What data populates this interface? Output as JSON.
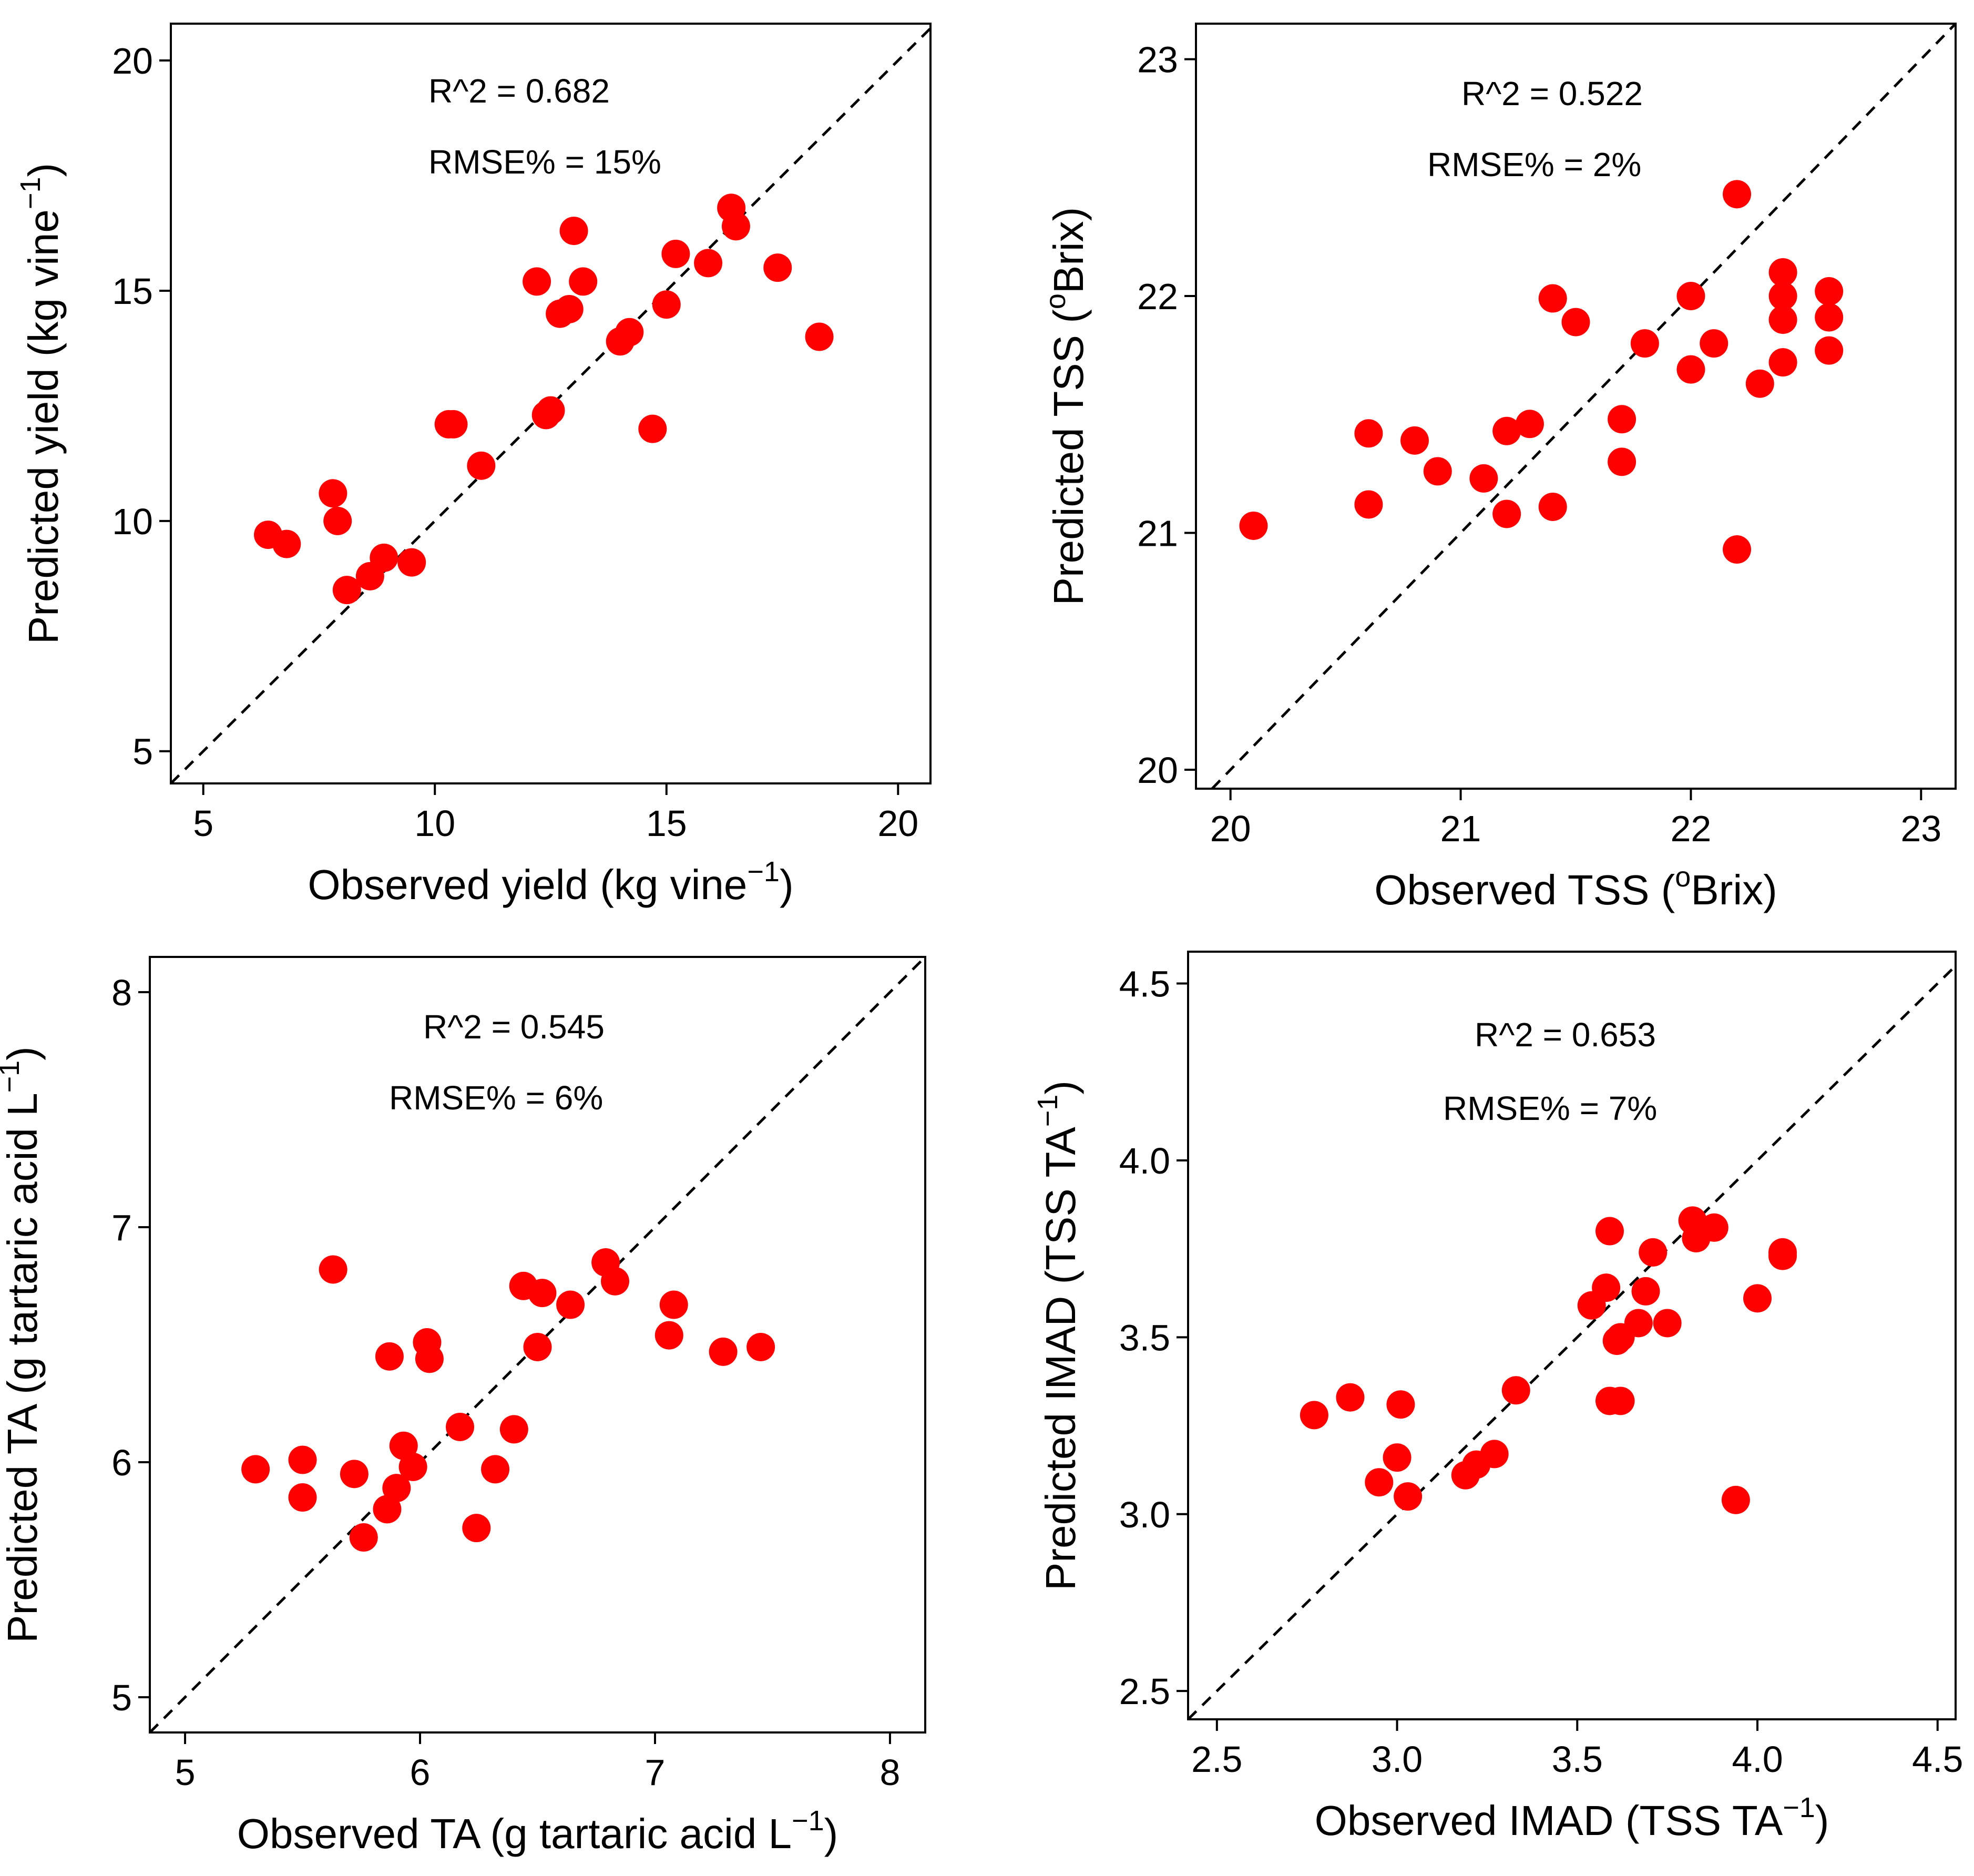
{
  "chart_data": [
    {
      "type": "scatter",
      "xlabel": "Observed yield (kg vine",
      "ylabel": "Predicted yield (kg vine",
      "label_superscript": "−1",
      "label_close": ")",
      "xlim": [
        4.3,
        20.7
      ],
      "ylim": [
        4.3,
        20.8
      ],
      "xticks": [
        "5",
        "10",
        "15",
        "20"
      ],
      "yticks": [
        "5",
        "10",
        "15",
        "20"
      ],
      "tick_values": [
        5,
        10,
        15,
        20
      ],
      "annotations": [
        "R^2 = 0.682",
        "RMSE% = 15%"
      ],
      "color": "#ff0000",
      "x": [
        6.4,
        6.8,
        7.8,
        7.9,
        8.1,
        8.6,
        8.9,
        9.5,
        10.3,
        10.4,
        11.0,
        12.2,
        12.4,
        12.5,
        12.7,
        12.9,
        13.0,
        13.2,
        14.0,
        14.2,
        14.7,
        15.0,
        15.2,
        15.9,
        16.4,
        16.5,
        17.4,
        18.3
      ],
      "y": [
        9.7,
        9.5,
        10.6,
        10.0,
        8.5,
        8.8,
        9.2,
        9.1,
        12.1,
        12.1,
        11.2,
        15.2,
        12.3,
        12.4,
        14.5,
        14.6,
        16.3,
        15.2,
        13.9,
        14.1,
        12.0,
        14.7,
        15.8,
        15.6,
        16.8,
        16.4,
        15.5,
        14.0
      ]
    },
    {
      "type": "scatter",
      "xlabel": "Observed TSS (",
      "ylabel": "Predicted TSS (",
      "label_superscript": "o",
      "label_close": "Brix)",
      "xlim": [
        19.85,
        23.15
      ],
      "ylim": [
        19.92,
        23.15
      ],
      "xticks": [
        "20",
        "21",
        "22",
        "23"
      ],
      "yticks": [
        "20",
        "21",
        "22",
        "23"
      ],
      "tick_values": [
        20,
        21,
        22,
        23
      ],
      "annotations": [
        "R^2 = 0.522",
        "RMSE% = 2%"
      ],
      "color": "#ff0000",
      "x": [
        20.1,
        20.6,
        20.6,
        20.8,
        20.9,
        21.1,
        21.2,
        21.2,
        21.3,
        21.4,
        21.4,
        21.5,
        21.7,
        21.7,
        21.8,
        22.0,
        22.0,
        22.1,
        22.2,
        22.2,
        22.3,
        22.4,
        22.4,
        22.4,
        22.4,
        22.6,
        22.6,
        22.6
      ],
      "y": [
        21.03,
        21.42,
        21.12,
        21.39,
        21.26,
        21.23,
        21.43,
        21.08,
        21.46,
        21.99,
        21.11,
        21.89,
        21.48,
        21.3,
        21.8,
        22.0,
        21.69,
        21.8,
        22.43,
        20.93,
        21.63,
        22.1,
        22.0,
        21.9,
        21.72,
        22.02,
        21.91,
        21.77
      ]
    },
    {
      "type": "scatter",
      "xlabel": "Observed TA (g tartaric acid  L",
      "ylabel": "Predicted TA (g tartaric acid  L",
      "label_superscript": "−1",
      "label_close": ")",
      "xlim": [
        4.85,
        8.15
      ],
      "ylim": [
        4.85,
        8.15
      ],
      "xticks": [
        "5",
        "6",
        "7",
        "8"
      ],
      "yticks": [
        "5",
        "6",
        "7",
        "8"
      ],
      "tick_values": [
        5,
        6,
        7,
        8
      ],
      "annotations": [
        "R^2 = 0.545",
        "RMSE% = 6%"
      ],
      "color": "#ff0000",
      "x": [
        5.3,
        5.5,
        5.5,
        5.63,
        5.72,
        5.76,
        5.86,
        5.87,
        5.9,
        5.93,
        5.97,
        6.03,
        6.04,
        6.17,
        6.24,
        6.32,
        6.4,
        6.44,
        6.5,
        6.52,
        6.64,
        6.79,
        6.83,
        7.06,
        7.08,
        7.29,
        7.45
      ],
      "y": [
        5.97,
        6.01,
        5.85,
        6.82,
        5.95,
        5.68,
        5.8,
        6.45,
        5.89,
        6.07,
        5.98,
        6.51,
        6.44,
        6.15,
        5.72,
        5.97,
        6.14,
        6.75,
        6.49,
        6.72,
        6.67,
        6.85,
        6.77,
        6.54,
        6.67,
        6.47,
        6.49
      ]
    },
    {
      "type": "scatter",
      "xlabel": "Observed IMAD (TSS TA",
      "ylabel": "Predicted IMAD (TSS TA",
      "label_superscript": "−1",
      "label_close": ")",
      "xlim": [
        2.42,
        4.55
      ],
      "ylim": [
        2.42,
        4.59
      ],
      "xticks": [
        "2.5",
        "3.0",
        "3.5",
        "4.0",
        "4.5"
      ],
      "yticks": [
        "2.5",
        "3.0",
        "3.5",
        "4.0",
        "4.5"
      ],
      "tick_values": [
        2.5,
        3.0,
        3.5,
        4.0,
        4.5
      ],
      "annotations": [
        "R^2 = 0.653",
        "RMSE% = 7%"
      ],
      "color": "#ff0000",
      "x": [
        2.77,
        2.87,
        2.95,
        3.0,
        3.01,
        3.03,
        3.19,
        3.22,
        3.27,
        3.33,
        3.54,
        3.58,
        3.59,
        3.59,
        3.61,
        3.62,
        3.62,
        3.67,
        3.69,
        3.71,
        3.75,
        3.82,
        3.83,
        3.88,
        3.94,
        4.0,
        4.07,
        4.07
      ],
      "y": [
        3.28,
        3.33,
        3.09,
        3.16,
        3.31,
        3.05,
        3.11,
        3.14,
        3.17,
        3.35,
        3.59,
        3.64,
        3.32,
        3.8,
        3.49,
        3.32,
        3.5,
        3.54,
        3.63,
        3.74,
        3.54,
        3.83,
        3.78,
        3.81,
        3.04,
        3.61,
        3.74,
        3.73
      ]
    }
  ]
}
